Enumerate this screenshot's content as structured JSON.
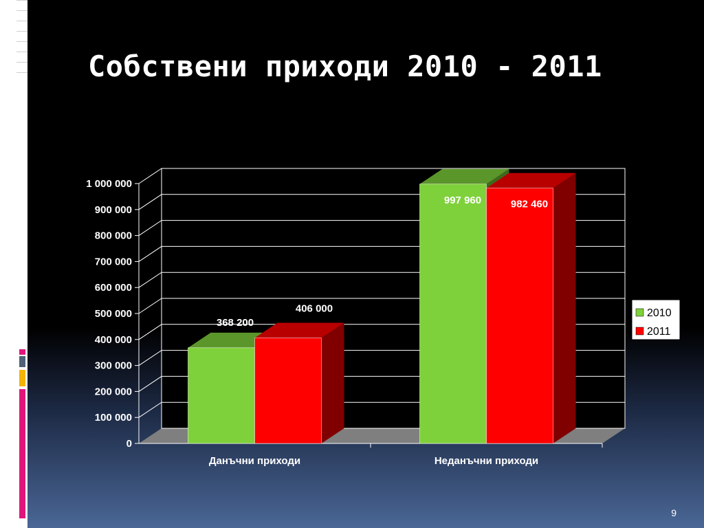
{
  "slide": {
    "title": "Собствени приходи 2010 - 2011",
    "page_number": "9"
  },
  "colors": {
    "background_top": "#000000",
    "background_bottom": "#4a6796",
    "series_2010": "#7fd13b",
    "series_2011": "#ff0000",
    "accent_magenta": "#e0157a",
    "accent_slate": "#4e6178",
    "accent_amber": "#f5b400"
  },
  "chart_data": {
    "type": "bar",
    "style": "3d-clustered",
    "title": "",
    "xlabel": "",
    "ylabel": "",
    "categories": [
      "Данъчни приходи",
      "Неданъчни приходи"
    ],
    "series": [
      {
        "name": "2010",
        "color": "#7fd13b",
        "values": [
          368200,
          997960
        ],
        "labels": [
          "368 200",
          "997 960"
        ]
      },
      {
        "name": "2011",
        "color": "#ff0000",
        "values": [
          406000,
          982460
        ],
        "labels": [
          "406 000",
          "982 460"
        ]
      }
    ],
    "ylim": [
      0,
      1000000
    ],
    "yticks": [
      "0",
      "100 000",
      "200 000",
      "300 000",
      "400 000",
      "500 000",
      "600 000",
      "700 000",
      "800 000",
      "900 000",
      "1 000 000"
    ],
    "grid": true,
    "legend_position": "right"
  }
}
